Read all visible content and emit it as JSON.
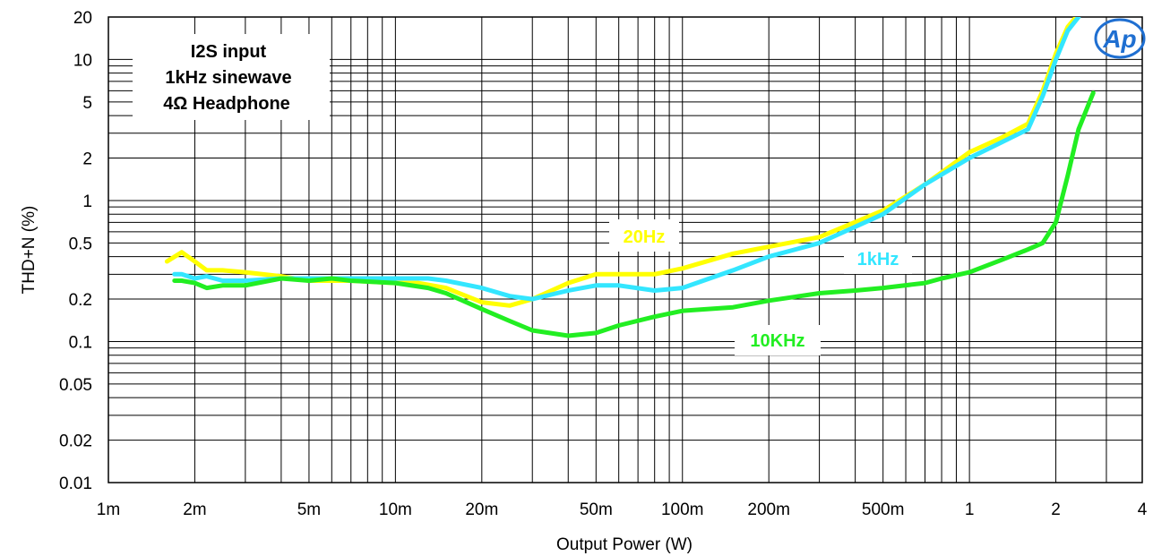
{
  "chart_data": {
    "type": "line",
    "x_scale": "log",
    "y_scale": "log",
    "xlabel": "Output Power (W)",
    "ylabel": "THD+N (%)",
    "xlim": [
      0.001,
      4
    ],
    "ylim": [
      0.01,
      20
    ],
    "x_ticks": [
      {
        "value": 0.001,
        "label": "1m"
      },
      {
        "value": 0.002,
        "label": "2m"
      },
      {
        "value": 0.005,
        "label": "5m"
      },
      {
        "value": 0.01,
        "label": "10m"
      },
      {
        "value": 0.02,
        "label": "20m"
      },
      {
        "value": 0.05,
        "label": "50m"
      },
      {
        "value": 0.1,
        "label": "100m"
      },
      {
        "value": 0.2,
        "label": "200m"
      },
      {
        "value": 0.5,
        "label": "500m"
      },
      {
        "value": 1,
        "label": "1"
      },
      {
        "value": 2,
        "label": "2"
      },
      {
        "value": 4,
        "label": "4"
      }
    ],
    "y_ticks": [
      {
        "value": 20,
        "label": "20"
      },
      {
        "value": 10,
        "label": "10"
      },
      {
        "value": 5,
        "label": "5"
      },
      {
        "value": 2,
        "label": "2"
      },
      {
        "value": 1,
        "label": "1"
      },
      {
        "value": 0.5,
        "label": "0.5"
      },
      {
        "value": 0.2,
        "label": "0.2"
      },
      {
        "value": 0.1,
        "label": "0.1"
      },
      {
        "value": 0.05,
        "label": "0.05"
      },
      {
        "value": 0.02,
        "label": "0.02"
      },
      {
        "value": 0.01,
        "label": "0.01"
      }
    ],
    "grid": true,
    "annotation": [
      "I2S input",
      "1kHz sinewave",
      "4Ω Headphone"
    ],
    "logo": "Ap",
    "series": [
      {
        "name": "20Hz",
        "color": "#ffff00",
        "x": [
          0.0016,
          0.0018,
          0.002,
          0.0022,
          0.0025,
          0.003,
          0.004,
          0.005,
          0.007,
          0.01,
          0.012,
          0.015,
          0.02,
          0.025,
          0.03,
          0.04,
          0.05,
          0.06,
          0.08,
          0.1,
          0.15,
          0.2,
          0.3,
          0.5,
          0.7,
          1,
          1.3,
          1.6,
          1.8,
          2,
          2.2,
          2.4
        ],
        "y": [
          0.37,
          0.43,
          0.37,
          0.32,
          0.32,
          0.31,
          0.29,
          0.27,
          0.27,
          0.26,
          0.26,
          0.24,
          0.19,
          0.18,
          0.2,
          0.26,
          0.3,
          0.3,
          0.3,
          0.33,
          0.42,
          0.47,
          0.55,
          0.85,
          1.3,
          2.2,
          2.8,
          3.5,
          6,
          11,
          17,
          21
        ]
      },
      {
        "name": "1kHz",
        "color": "#33e6ff",
        "x": [
          0.0017,
          0.0018,
          0.002,
          0.0022,
          0.0025,
          0.003,
          0.004,
          0.005,
          0.007,
          0.01,
          0.013,
          0.015,
          0.02,
          0.025,
          0.03,
          0.04,
          0.05,
          0.06,
          0.08,
          0.1,
          0.15,
          0.2,
          0.3,
          0.5,
          0.7,
          1,
          1.3,
          1.6,
          1.8,
          2,
          2.2,
          2.4
        ],
        "y": [
          0.3,
          0.3,
          0.28,
          0.29,
          0.27,
          0.27,
          0.28,
          0.28,
          0.28,
          0.28,
          0.28,
          0.27,
          0.24,
          0.21,
          0.2,
          0.23,
          0.25,
          0.25,
          0.23,
          0.24,
          0.32,
          0.4,
          0.5,
          0.8,
          1.3,
          2,
          2.6,
          3.2,
          5.5,
          10,
          16,
          20
        ]
      },
      {
        "name": "10KHz",
        "color": "#22ee22",
        "x": [
          0.0017,
          0.0018,
          0.002,
          0.0022,
          0.0025,
          0.003,
          0.004,
          0.005,
          0.006,
          0.007,
          0.01,
          0.013,
          0.015,
          0.02,
          0.025,
          0.03,
          0.04,
          0.05,
          0.06,
          0.08,
          0.1,
          0.15,
          0.2,
          0.3,
          0.4,
          0.5,
          0.7,
          0.8,
          1,
          1.3,
          1.6,
          1.8,
          2,
          2.2,
          2.4,
          2.7
        ],
        "y": [
          0.27,
          0.27,
          0.26,
          0.24,
          0.25,
          0.25,
          0.28,
          0.27,
          0.28,
          0.27,
          0.26,
          0.24,
          0.22,
          0.17,
          0.14,
          0.12,
          0.11,
          0.115,
          0.13,
          0.15,
          0.165,
          0.175,
          0.195,
          0.22,
          0.23,
          0.24,
          0.26,
          0.28,
          0.31,
          0.38,
          0.45,
          0.5,
          0.7,
          1.5,
          3.2,
          5.8
        ]
      }
    ]
  }
}
